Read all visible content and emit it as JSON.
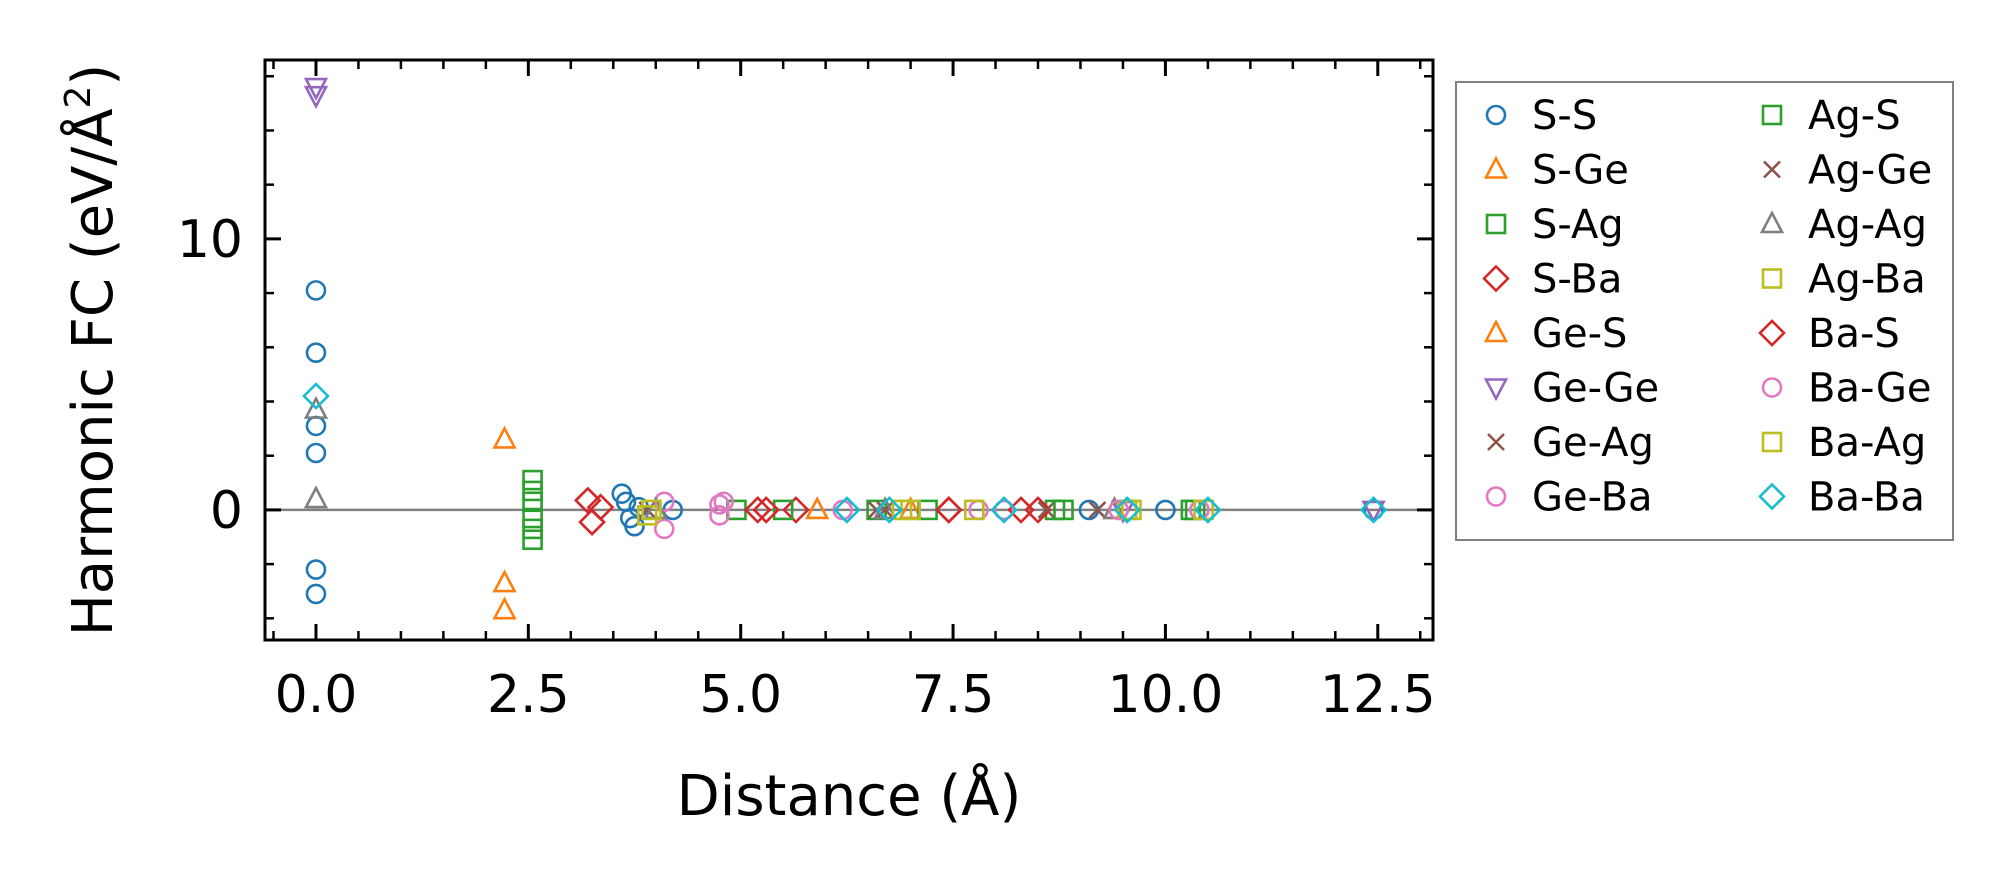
{
  "chart_data": {
    "type": "scatter",
    "title": "",
    "xlabel": "Distance (Å)",
    "ylabel": "Harmonic FC (eV/Å²)",
    "xlabel_text": "Distance (Å)",
    "ylabel_prefix": "Harmonic FC (eV/Å",
    "ylabel_sup": "2",
    "ylabel_suffix": ")",
    "xlim": [
      -0.6,
      13.15
    ],
    "ylim": [
      -4.8,
      16.6
    ],
    "xticks": [
      0.0,
      2.5,
      5.0,
      7.5,
      10.0,
      12.5
    ],
    "xtick_labels": [
      "0.0",
      "2.5",
      "5.0",
      "7.5",
      "10.0",
      "12.5"
    ],
    "yticks": [
      0,
      10
    ],
    "ytick_labels": [
      "0",
      "10"
    ],
    "grid": false,
    "zero_line": true,
    "legend_position": "outside-right",
    "series": [
      {
        "name": "S-S",
        "marker": "circle",
        "color": "#1f77b4",
        "points": [
          [
            0,
            8.1
          ],
          [
            0,
            5.8
          ],
          [
            0,
            3.1
          ],
          [
            0,
            2.1
          ],
          [
            0,
            -2.2
          ],
          [
            0,
            -3.1
          ],
          [
            3.6,
            0.6
          ],
          [
            3.65,
            0.3
          ],
          [
            3.7,
            -0.3
          ],
          [
            3.75,
            -0.6
          ],
          [
            3.8,
            0.1
          ],
          [
            4.2,
            0
          ],
          [
            9.1,
            0
          ],
          [
            10.0,
            0
          ],
          [
            12.45,
            0
          ]
        ]
      },
      {
        "name": "S-Ge",
        "marker": "triangle-up",
        "color": "#ff7f0e",
        "points": [
          [
            2.22,
            2.6
          ],
          [
            2.22,
            -2.7
          ],
          [
            2.22,
            -3.7
          ]
        ]
      },
      {
        "name": "S-Ag",
        "marker": "square",
        "color": "#2ca02c",
        "points": [
          [
            2.55,
            1.1
          ],
          [
            2.55,
            0.7
          ],
          [
            2.55,
            0.3
          ],
          [
            2.55,
            -0.3
          ],
          [
            2.55,
            -0.7
          ],
          [
            2.55,
            -1.1
          ],
          [
            4.95,
            0
          ],
          [
            6.6,
            0
          ],
          [
            8.7,
            0
          ],
          [
            10.35,
            0
          ]
        ]
      },
      {
        "name": "S-Ba",
        "marker": "diamond",
        "color": "#d62728",
        "points": [
          [
            3.2,
            0.35
          ],
          [
            3.25,
            -0.45
          ],
          [
            3.35,
            0.1
          ],
          [
            5.2,
            0
          ],
          [
            5.65,
            0
          ],
          [
            7.45,
            0
          ],
          [
            8.5,
            0
          ]
        ]
      },
      {
        "name": "Ge-S",
        "marker": "triangle-up",
        "color": "#ff7f0e",
        "points": [
          [
            5.9,
            0
          ],
          [
            7.0,
            0
          ],
          [
            9.4,
            0
          ]
        ]
      },
      {
        "name": "Ge-Ge",
        "marker": "triangle-down",
        "color": "#9467bd",
        "points": [
          [
            0,
            15.6
          ],
          [
            0,
            15.3
          ],
          [
            9.5,
            0
          ],
          [
            12.45,
            0
          ]
        ]
      },
      {
        "name": "Ge-Ag",
        "marker": "x",
        "color": "#8c564b",
        "points": [
          [
            3.9,
            0
          ],
          [
            6.6,
            0
          ],
          [
            8.6,
            0
          ]
        ]
      },
      {
        "name": "Ge-Ba",
        "marker": "circle",
        "color": "#e377c2",
        "points": [
          [
            4.1,
            0.3
          ],
          [
            4.1,
            -0.7
          ],
          [
            4.75,
            0.2
          ],
          [
            4.75,
            -0.2
          ],
          [
            7.8,
            0
          ],
          [
            10.4,
            0
          ]
        ]
      },
      {
        "name": "Ag-S",
        "marker": "square",
        "color": "#2ca02c",
        "points": [
          [
            5.5,
            0
          ],
          [
            7.2,
            0
          ],
          [
            8.8,
            0
          ],
          [
            10.3,
            0
          ]
        ]
      },
      {
        "name": "Ag-Ge",
        "marker": "x",
        "color": "#8c564b",
        "points": [
          [
            6.7,
            0
          ],
          [
            9.2,
            0
          ]
        ]
      },
      {
        "name": "Ag-Ag",
        "marker": "triangle-up",
        "color": "#7f7f7f",
        "points": [
          [
            0,
            3.7
          ],
          [
            0,
            0.4
          ],
          [
            4.0,
            0
          ],
          [
            6.7,
            0
          ],
          [
            9.4,
            0
          ]
        ]
      },
      {
        "name": "Ag-Ba",
        "marker": "square",
        "color": "#bcbd22",
        "points": [
          [
            3.95,
            0
          ],
          [
            6.9,
            0
          ],
          [
            7.75,
            0
          ],
          [
            9.55,
            0
          ]
        ]
      },
      {
        "name": "Ba-S",
        "marker": "diamond",
        "color": "#d62728",
        "points": [
          [
            5.3,
            0
          ],
          [
            7.45,
            0
          ],
          [
            8.3,
            0
          ]
        ]
      },
      {
        "name": "Ba-Ge",
        "marker": "circle",
        "color": "#e377c2",
        "points": [
          [
            4.8,
            0.3
          ],
          [
            6.2,
            0
          ],
          [
            8.1,
            0
          ],
          [
            9.45,
            0
          ],
          [
            10.4,
            0
          ]
        ]
      },
      {
        "name": "Ba-Ag",
        "marker": "square",
        "color": "#bcbd22",
        "points": [
          [
            3.9,
            -0.2
          ],
          [
            7.0,
            0
          ],
          [
            9.6,
            0
          ],
          [
            10.45,
            0
          ]
        ]
      },
      {
        "name": "Ba-Ba",
        "marker": "diamond",
        "color": "#17becf",
        "points": [
          [
            0,
            4.2
          ],
          [
            6.25,
            0
          ],
          [
            6.75,
            0
          ],
          [
            8.1,
            0
          ],
          [
            9.55,
            0
          ],
          [
            10.5,
            0
          ],
          [
            12.45,
            0
          ]
        ]
      }
    ]
  }
}
